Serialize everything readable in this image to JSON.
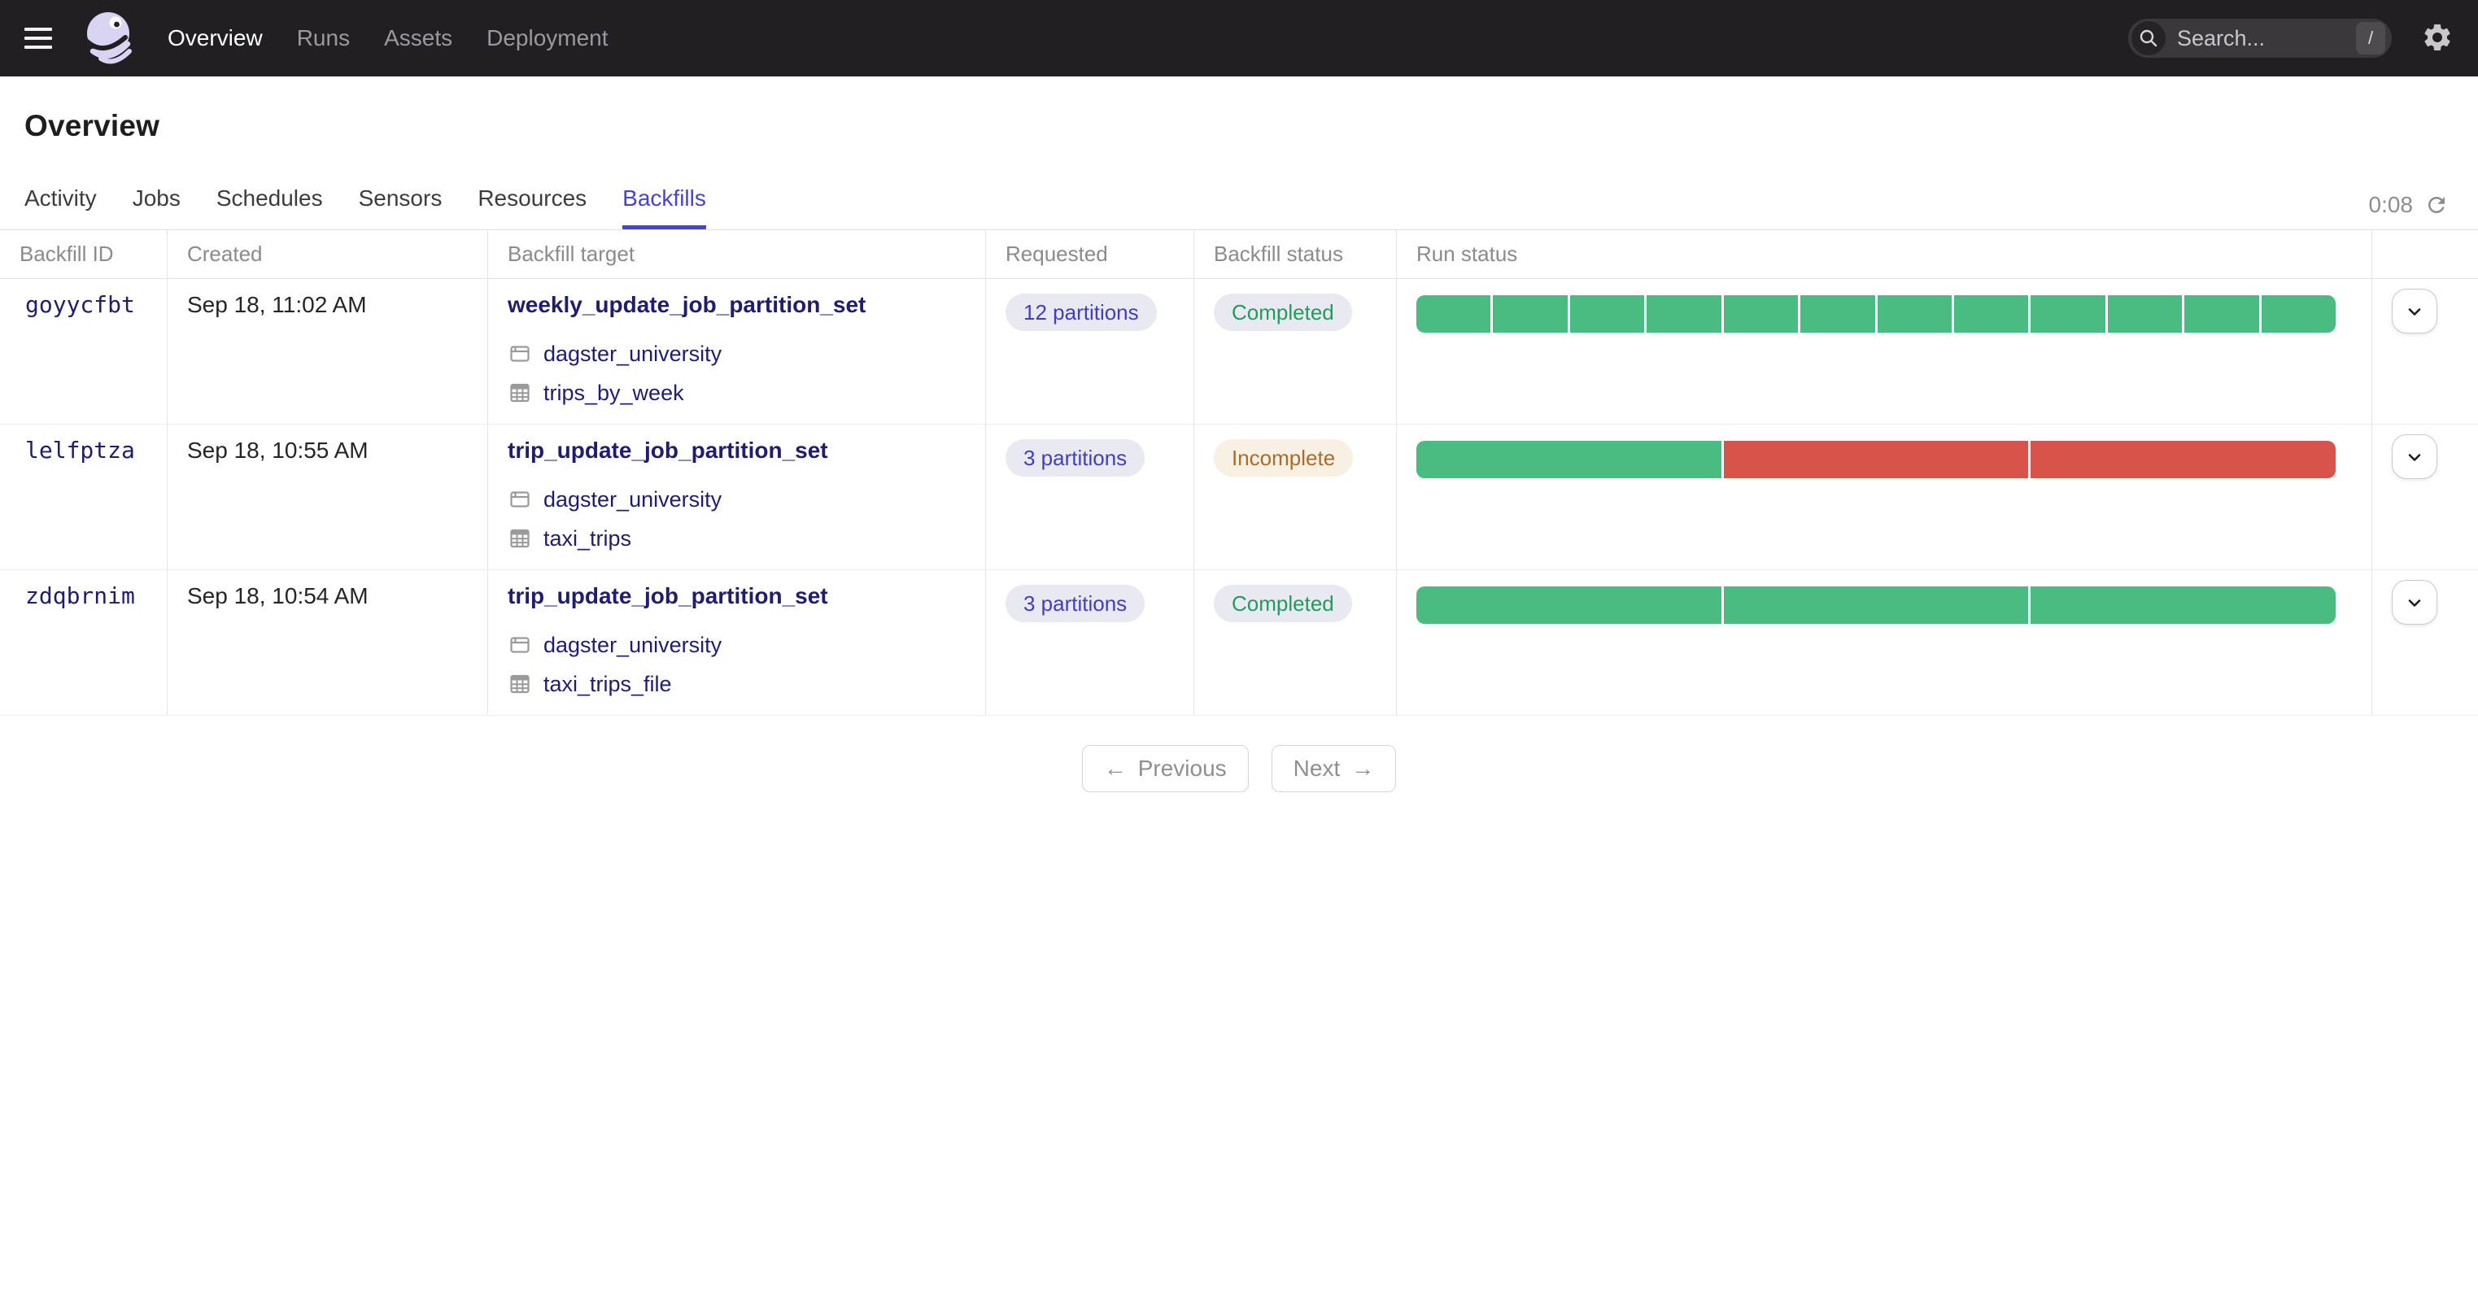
{
  "nav": {
    "items": [
      {
        "label": "Overview",
        "active": true
      },
      {
        "label": "Runs",
        "active": false
      },
      {
        "label": "Assets",
        "active": false
      },
      {
        "label": "Deployment",
        "active": false
      }
    ],
    "search_placeholder": "Search...",
    "search_shortcut": "/"
  },
  "header": {
    "title": "Overview"
  },
  "tabs": {
    "items": [
      "Activity",
      "Jobs",
      "Schedules",
      "Sensors",
      "Resources",
      "Backfills"
    ],
    "active": "Backfills",
    "refresh_timer": "0:08"
  },
  "table": {
    "columns": [
      "Backfill ID",
      "Created",
      "Backfill target",
      "Requested",
      "Backfill status",
      "Run status"
    ],
    "rows": [
      {
        "id": "goyycfbt",
        "created": "Sep 18, 11:02 AM",
        "target": "weekly_update_job_partition_set",
        "repo": "dagster_university",
        "asset": "trips_by_week",
        "requested": "12 partitions",
        "status": "Completed",
        "status_kind": "completed",
        "run_segments": [
          "success",
          "success",
          "success",
          "success",
          "success",
          "success",
          "success",
          "success",
          "success",
          "success",
          "success",
          "success"
        ]
      },
      {
        "id": "lelfptza",
        "created": "Sep 18, 10:55 AM",
        "target": "trip_update_job_partition_set",
        "repo": "dagster_university",
        "asset": "taxi_trips",
        "requested": "3 partitions",
        "status": "Incomplete",
        "status_kind": "incomplete",
        "run_segments": [
          "success",
          "failure",
          "failure"
        ]
      },
      {
        "id": "zdqbrnim",
        "created": "Sep 18, 10:54 AM",
        "target": "trip_update_job_partition_set",
        "repo": "dagster_university",
        "asset": "taxi_trips_file",
        "requested": "3 partitions",
        "status": "Completed",
        "status_kind": "completed",
        "run_segments": [
          "success",
          "success",
          "success"
        ]
      }
    ]
  },
  "pagination": {
    "previous_label": "Previous",
    "next_label": "Next",
    "previous_arrow": "←",
    "next_arrow": "→"
  },
  "colors": {
    "accent": "#4843ce",
    "accent_text": "#423dc4",
    "link": "#201d6e",
    "success": "#4abc82",
    "failure": "#d8544b",
    "completed_text": "#209d5c",
    "incomplete_text": "#ae6a28",
    "incomplete_bg": "#f7f0e3",
    "pill_bg": "#e9e9f1"
  }
}
